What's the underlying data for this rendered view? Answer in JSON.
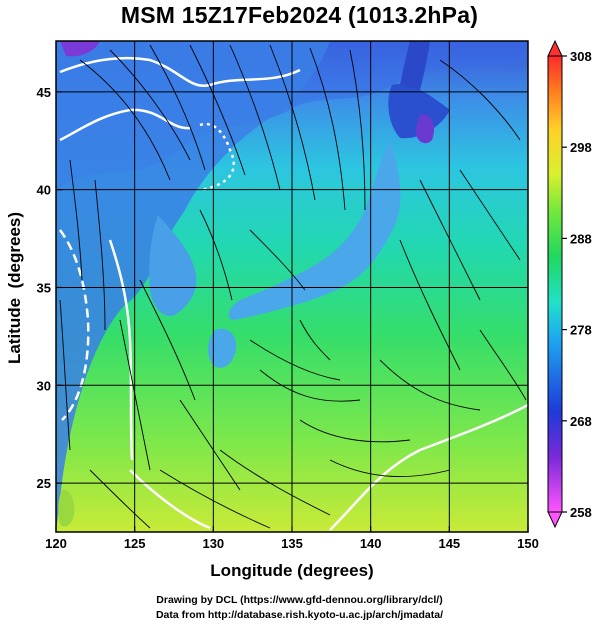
{
  "title": "MSM 15Z17Feb2024 (1013.2hPa)",
  "map": {
    "xlabel": "Longitude (degrees)",
    "ylabel": "Latitude  (degrees)",
    "lon_range": [
      120,
      150
    ],
    "lat_range": [
      22.5,
      47.6
    ],
    "lon_ticks": [
      "120",
      "125",
      "130",
      "135",
      "140",
      "145",
      "150"
    ],
    "lat_ticks": [
      "25",
      "30",
      "35",
      "40",
      "45"
    ],
    "grid": true,
    "field": "temperature (K) shading with surface wind streamlines",
    "colors": {
      "cold": "#2b3fd0",
      "mid": "#23d9a8",
      "warm": "#c8e83c",
      "land": "#3b6fe0",
      "coast": "#000000",
      "isotherm": "#ffffff"
    }
  },
  "colorbar": {
    "range": [
      258,
      308
    ],
    "tick_labels": [
      "308",
      "298",
      "288",
      "278",
      "268",
      "258"
    ],
    "tick_values": [
      308,
      298,
      288,
      278,
      268,
      258
    ]
  },
  "footer": {
    "line1": "Drawing by DCL (https://www.gfd-dennou.org/library/dcl/)",
    "line2": "Data from http://database.rish.kyoto-u.ac.jp/arch/jmadata/"
  }
}
